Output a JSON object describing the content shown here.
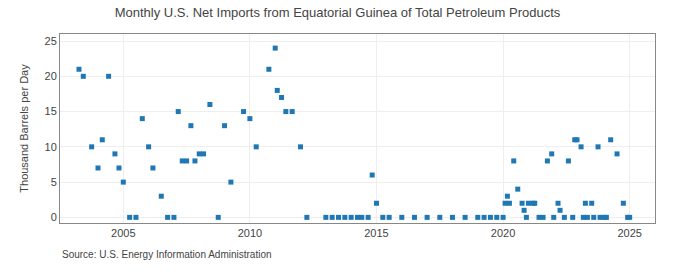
{
  "chart_data": {
    "type": "scatter",
    "title": "Monthly U.S. Net Imports from Equatorial Guinea of Total Petroleum Products",
    "ylabel": "Thousand Barrels per Day",
    "annotations": [
      "Source: U.S. Energy Information Administration"
    ],
    "marker": "square",
    "grid": true,
    "xlim": [
      2002.5,
      2026.0
    ],
    "ylim": [
      -0.8,
      26
    ],
    "xticks": [
      2005,
      2010,
      2015,
      2020,
      2025
    ],
    "yticks": [
      0,
      5,
      10,
      15,
      20,
      25
    ],
    "x": [
      2003.25,
      2003.42,
      2003.75,
      2004.0,
      2004.17,
      2004.42,
      2004.67,
      2004.83,
      2005.0,
      2005.25,
      2005.5,
      2005.75,
      2006.0,
      2006.17,
      2006.5,
      2006.75,
      2007.0,
      2007.17,
      2007.33,
      2007.5,
      2007.67,
      2007.83,
      2008.0,
      2008.17,
      2008.42,
      2008.75,
      2009.0,
      2009.25,
      2009.75,
      2010.0,
      2010.25,
      2010.75,
      2011.0,
      2011.08,
      2011.25,
      2011.42,
      2011.67,
      2012.0,
      2012.25,
      2013.0,
      2013.25,
      2013.5,
      2013.75,
      2014.0,
      2014.25,
      2014.42,
      2014.67,
      2014.83,
      2015.0,
      2015.25,
      2015.5,
      2016.0,
      2016.5,
      2017.0,
      2017.5,
      2018.0,
      2018.5,
      2019.0,
      2019.25,
      2019.5,
      2019.75,
      2020.0,
      2020.08,
      2020.17,
      2020.25,
      2020.42,
      2020.58,
      2020.75,
      2020.83,
      2020.92,
      2021.0,
      2021.17,
      2021.25,
      2021.42,
      2021.58,
      2021.75,
      2021.92,
      2022.0,
      2022.17,
      2022.25,
      2022.42,
      2022.58,
      2022.75,
      2022.83,
      2022.92,
      2023.08,
      2023.17,
      2023.25,
      2023.33,
      2023.5,
      2023.58,
      2023.75,
      2023.83,
      2024.0,
      2024.08,
      2024.25,
      2024.5,
      2024.75,
      2024.92,
      2025.0
    ],
    "values": [
      21,
      20,
      10,
      7,
      11,
      20,
      9,
      7,
      5,
      0,
      0,
      14,
      10,
      7,
      3,
      0,
      0,
      15,
      8,
      8,
      13,
      8,
      9,
      9,
      16,
      0,
      13,
      5,
      15,
      14,
      10,
      21,
      24,
      18,
      17,
      15,
      15,
      10,
      0,
      0,
      0,
      0,
      0,
      0,
      0,
      0,
      0,
      6,
      2,
      0,
      0,
      0,
      0,
      0,
      0,
      0,
      0,
      0,
      0,
      0,
      0,
      0,
      2,
      3,
      2,
      8,
      4,
      2,
      1,
      0,
      2,
      2,
      2,
      0,
      0,
      8,
      9,
      0,
      2,
      1,
      0,
      8,
      0,
      11,
      11,
      10,
      0,
      2,
      0,
      2,
      0,
      10,
      0,
      0,
      0,
      11,
      9,
      2,
      0,
      0
    ]
  }
}
